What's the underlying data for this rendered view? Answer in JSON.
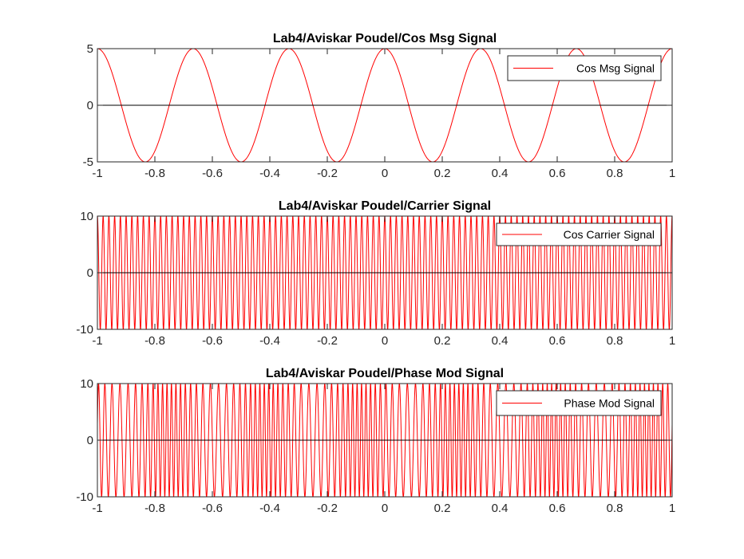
{
  "chart_data": [
    {
      "type": "line",
      "title": "Lab4/Aviskar Poudel/Cos Msg Signal",
      "xlim": [
        -1,
        1
      ],
      "ylim": [
        -5,
        5
      ],
      "xticks": [
        "-1",
        "-0.8",
        "-0.6",
        "-0.4",
        "-0.2",
        "0",
        "0.2",
        "0.4",
        "0.6",
        "0.8",
        "1"
      ],
      "yticks": [
        "-5",
        "0",
        "5"
      ],
      "grid": false,
      "legend_location": "top-right",
      "color": "#ff0000",
      "series": [
        {
          "name": "Cos Msg Signal",
          "function": "5*cos(6*pi*t)",
          "amplitude": 5,
          "frequency_hz": 3
        }
      ]
    },
    {
      "type": "line",
      "title": "Lab4/Aviskar Poudel/Carrier Signal",
      "xlim": [
        -1,
        1
      ],
      "ylim": [
        -10,
        10
      ],
      "xticks": [
        "-1",
        "-0.8",
        "-0.6",
        "-0.4",
        "-0.2",
        "0",
        "0.2",
        "0.4",
        "0.6",
        "0.8",
        "1"
      ],
      "yticks": [
        "-10",
        "0",
        "10"
      ],
      "grid": false,
      "legend_location": "top-right",
      "color": "#ff0000",
      "series": [
        {
          "name": "Cos Carrier Signal",
          "function": "10*cos(2*pi*50*t)",
          "amplitude": 10,
          "frequency_hz": 50
        }
      ]
    },
    {
      "type": "line",
      "title": "Lab4/Aviskar Poudel/Phase Mod Signal",
      "xlim": [
        -1,
        1
      ],
      "ylim": [
        -10,
        10
      ],
      "xticks": [
        "-1",
        "-0.8",
        "-0.6",
        "-0.4",
        "-0.2",
        "0",
        "0.2",
        "0.4",
        "0.6",
        "0.8",
        "1"
      ],
      "yticks": [
        "-10",
        "0",
        "10"
      ],
      "grid": false,
      "legend_location": "top-right",
      "color": "#ff0000",
      "series": [
        {
          "name": "Phase Mod Signal",
          "function": "10*cos(2*pi*50*t + 5*cos(6*pi*t))",
          "amplitude": 10,
          "carrier_hz": 50,
          "message_hz": 3,
          "phase_deviation": 5
        }
      ]
    }
  ]
}
